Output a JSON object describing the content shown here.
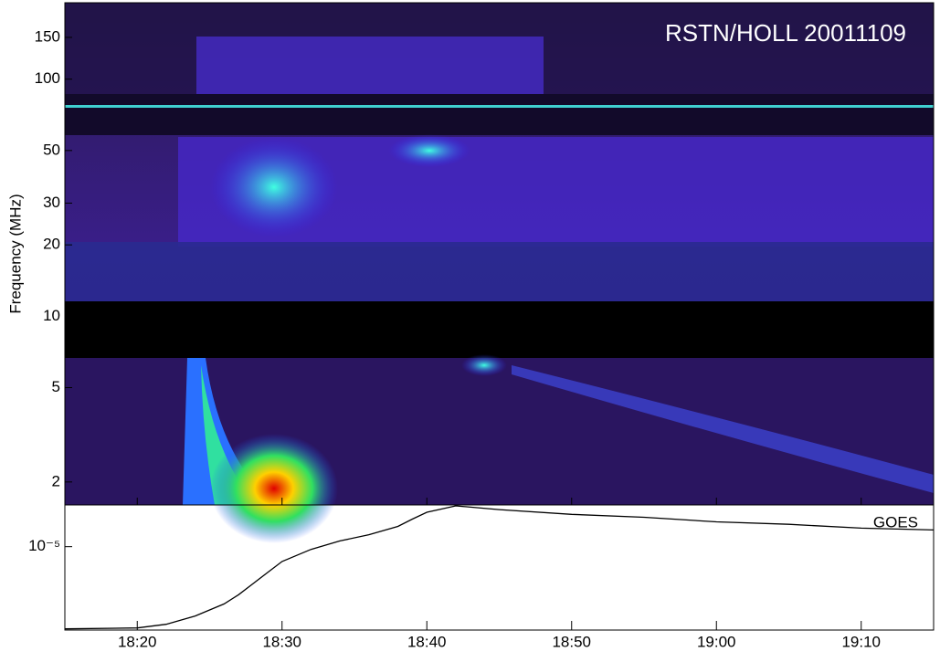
{
  "chart_data": [
    {
      "type": "spectrogram",
      "title": "RSTN/HOLL 20011109",
      "y_label": "Frequency (MHz)",
      "ylim": [
        1.6,
        210
      ],
      "log_y": true,
      "yticks": [
        2,
        5,
        10,
        20,
        30,
        50,
        100,
        150
      ]
    },
    {
      "type": "line",
      "annotation": "GOES",
      "log_y": true,
      "color": "#000000",
      "x": [
        "18:15",
        "18:20",
        "18:22",
        "18:24",
        "18:26",
        "18:27",
        "18:28",
        "18:29",
        "18:30",
        "18:32",
        "18:34",
        "18:36",
        "18:38",
        "18:39",
        "18:40",
        "18:42",
        "18:45",
        "18:50",
        "18:55",
        "19:00",
        "19:05",
        "19:10",
        "19:15"
      ],
      "series": [
        {
          "name": "GOES",
          "color": "#000000",
          "values": [
            2.55e-06,
            2.59e-06,
            2.75e-06,
            3.16e-06,
            3.86e-06,
            4.5e-06,
            5.41e-06,
            6.5e-06,
            7.82e-06,
            9.55e-06,
            1.1e-05,
            1.22e-05,
            1.4e-05,
            1.58e-05,
            1.77e-05,
            1.97e-05,
            1.85e-05,
            1.71e-05,
            1.63e-05,
            1.51e-05,
            1.45e-05,
            1.36e-05,
            1.32e-05
          ]
        }
      ],
      "xlim": [
        "18:15",
        "19:15"
      ],
      "xticks": [
        "18:20",
        "18:30",
        "18:40",
        "18:50",
        "19:00",
        "19:10"
      ],
      "ylim": [
        2.5e-06,
        2e-05
      ],
      "yticks": [
        {
          "value": 1e-05,
          "label": "10⁻⁵"
        }
      ]
    }
  ]
}
